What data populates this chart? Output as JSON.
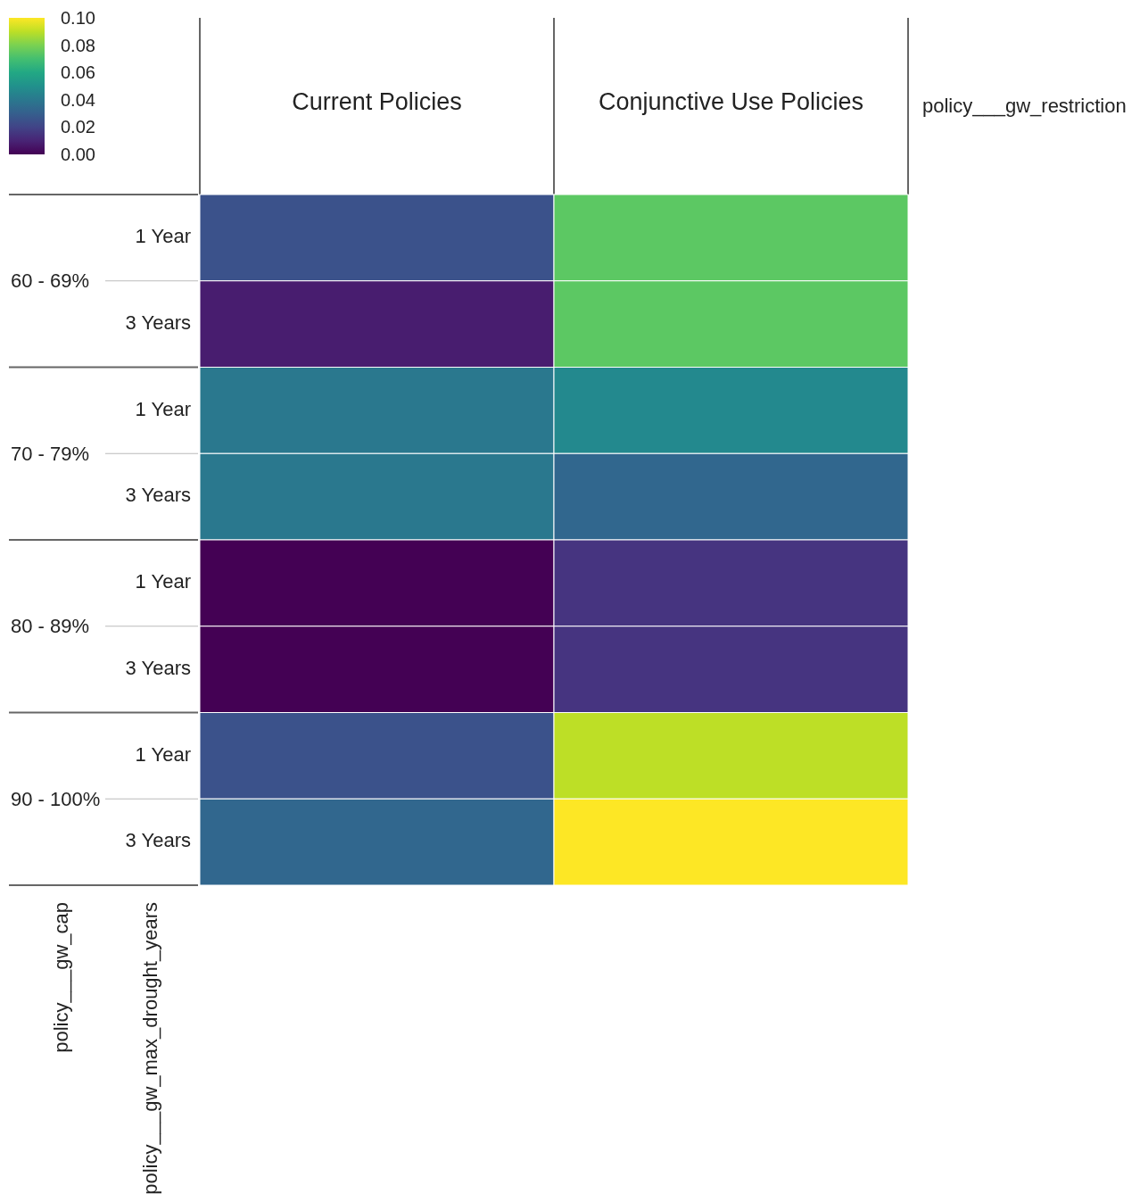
{
  "chart_data": {
    "type": "heatmap",
    "xlabel": "policy___gw_restriction",
    "ylabel": "policy___gw_cap",
    "y2label": "policy___gw_max_drought_years",
    "categories": [
      "Current Policies",
      "Conjunctive Use Policies"
    ],
    "y_categories": [
      "1 Year",
      "3 Years",
      "1 Year",
      "3 Years",
      "1 Year",
      "3 Years",
      "1 Year",
      "3 Years"
    ],
    "y2_categories": [
      "60 - 69%",
      null,
      "70 - 79%",
      null,
      "80 - 89%",
      null,
      "90 - 100%",
      null
    ],
    "cells": [
      [
        0.025,
        0.075
      ],
      [
        0.008,
        0.075
      ],
      [
        0.04,
        0.047
      ],
      [
        0.04,
        0.033
      ],
      [
        0,
        0.015
      ],
      [
        0,
        0.015
      ],
      [
        0.025,
        0.09
      ],
      [
        0.033,
        0.1
      ]
    ],
    "clim": [
      0,
      0.1
    ],
    "cticks": [
      {
        "value": 0,
        "label": "0.00"
      },
      {
        "value": 0.02,
        "label": "0.02"
      },
      {
        "value": 0.04,
        "label": "0.04"
      },
      {
        "value": 0.06,
        "label": "0.06"
      },
      {
        "value": 0.08,
        "label": "0.08"
      },
      {
        "value": 0.1,
        "label": "0.10"
      }
    ]
  }
}
